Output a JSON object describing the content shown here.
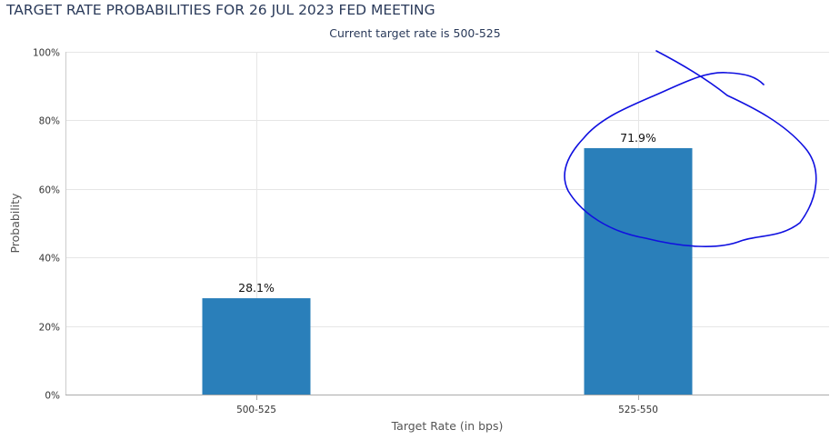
{
  "chart_data": {
    "type": "bar",
    "title": "TARGET RATE PROBABILITIES FOR 26 JUL 2023 FED MEETING",
    "subtitle": "Current target rate is 500-525",
    "xlabel": "Target Rate (in bps)",
    "ylabel": "Probability",
    "categories": [
      "500-525",
      "525-550"
    ],
    "values": [
      28.1,
      71.9
    ],
    "data_labels": [
      "28.1%",
      "71.9%"
    ],
    "ylim": [
      0,
      100
    ],
    "yticks": [
      0,
      20,
      40,
      60,
      80,
      100
    ],
    "ytick_labels": [
      "0%",
      "20%",
      "40%",
      "60%",
      "80%",
      "100%"
    ],
    "grid": true,
    "legend": "none",
    "bar_color": "#2a7fba",
    "annotation": {
      "kind": "hand-drawn circle",
      "color": "#1010e0",
      "around_category": "525-550"
    }
  }
}
